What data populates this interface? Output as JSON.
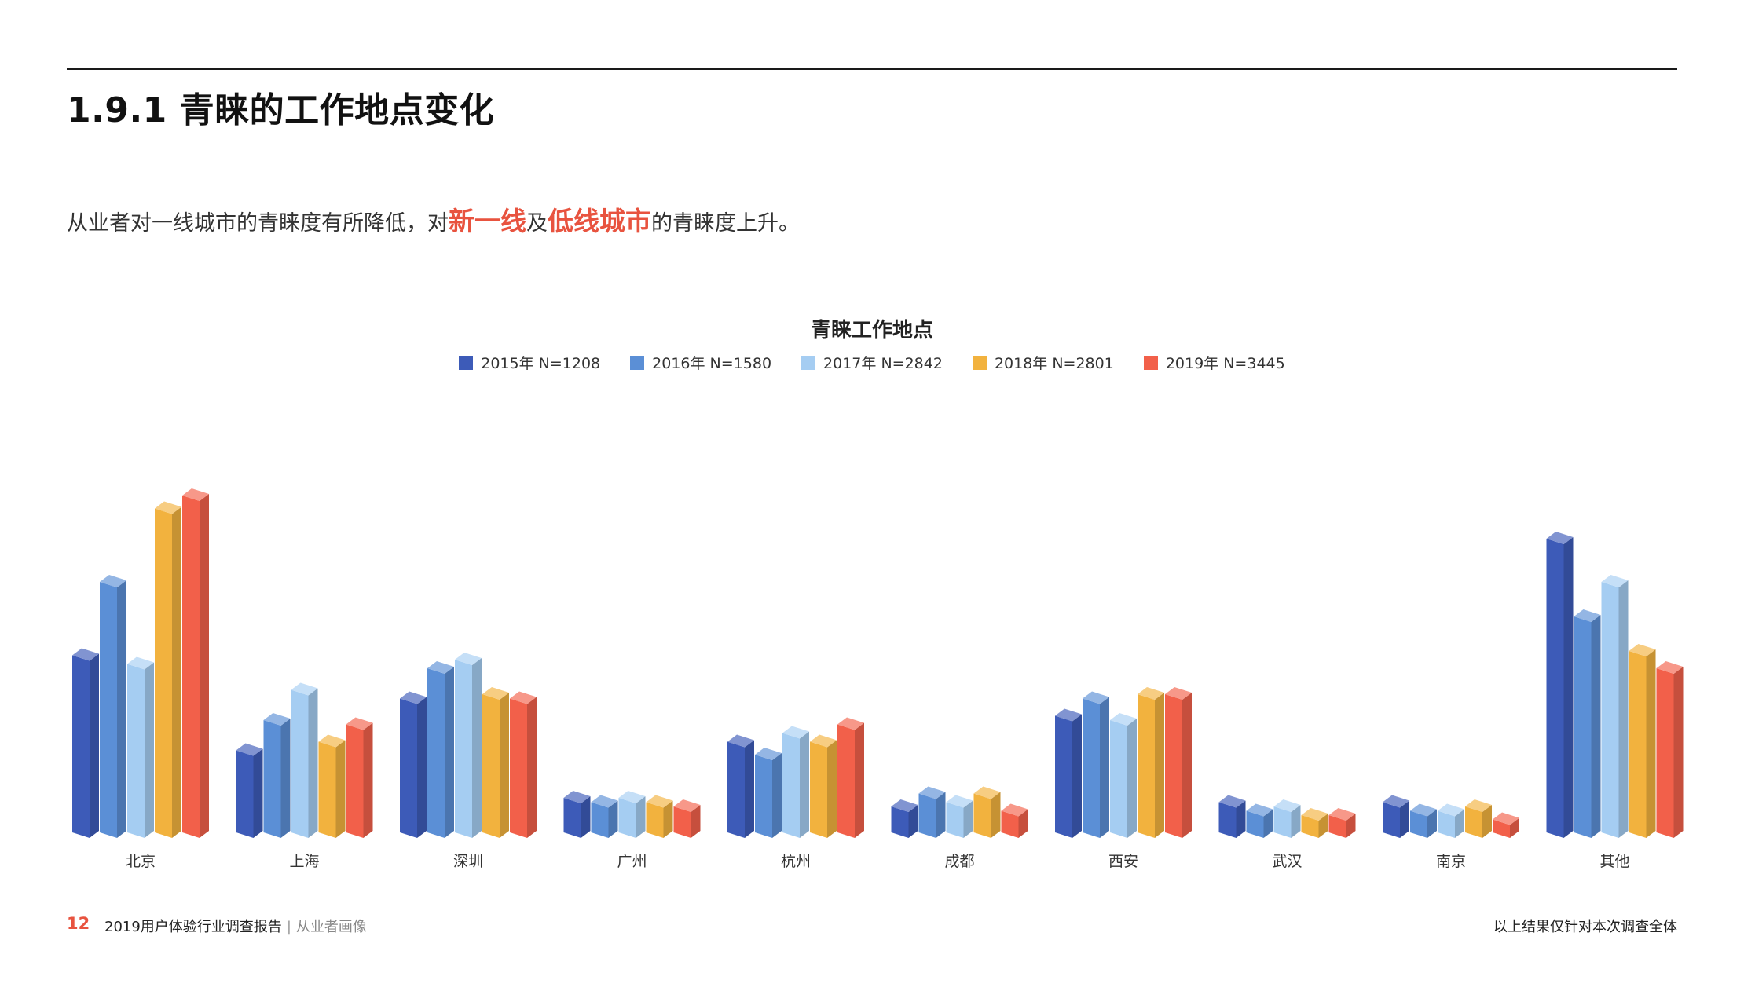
{
  "header": {
    "section_title": "1.9.1 青睐的工作地点变化",
    "summary_prefix": "从业者对一线城市的青睐度有所降低，对",
    "summary_highlight_1": "新一线",
    "summary_mid": "及",
    "summary_highlight_2": "低线城市",
    "summary_suffix": "的青睐度上升。"
  },
  "chart_data": {
    "type": "bar",
    "title": "青睐工作地点",
    "categories": [
      "北京",
      "上海",
      "深圳",
      "广州",
      "杭州",
      "成都",
      "西安",
      "武汉",
      "南京",
      "其他"
    ],
    "series": [
      {
        "name": "2015年  N=1208",
        "color": "#3d5bb8",
        "values": [
          20.5,
          9.5,
          15.5,
          4.0,
          10.5,
          3.0,
          13.5,
          3.5,
          3.5,
          34.0
        ]
      },
      {
        "name": "2016年  N=1580",
        "color": "#5b8fd6",
        "values": [
          29.0,
          13.0,
          19.0,
          3.5,
          9.0,
          4.5,
          15.5,
          2.5,
          2.5,
          25.0
        ]
      },
      {
        "name": "2017年  N=2842",
        "color": "#a5cdf2",
        "values": [
          19.5,
          16.5,
          20.0,
          4.0,
          11.5,
          3.5,
          13.0,
          3.0,
          2.5,
          29.0
        ]
      },
      {
        "name": "2018年  N=2801",
        "color": "#f2b23e",
        "values": [
          37.5,
          10.5,
          16.0,
          3.5,
          10.5,
          4.5,
          16.0,
          2.0,
          3.0,
          21.0
        ]
      },
      {
        "name": "2019年  N=3445",
        "color": "#f2604a",
        "values": [
          39.0,
          12.5,
          15.5,
          3.0,
          12.5,
          2.5,
          16.0,
          2.0,
          1.5,
          19.0
        ]
      }
    ],
    "legend_position": "top-center",
    "grid": false
  },
  "footer": {
    "page_number": "12",
    "report_title": "2019用户体验行业调查报告",
    "separator": "|",
    "section_name": "从业者画像",
    "note": "以上结果仅针对本次调查全体"
  }
}
